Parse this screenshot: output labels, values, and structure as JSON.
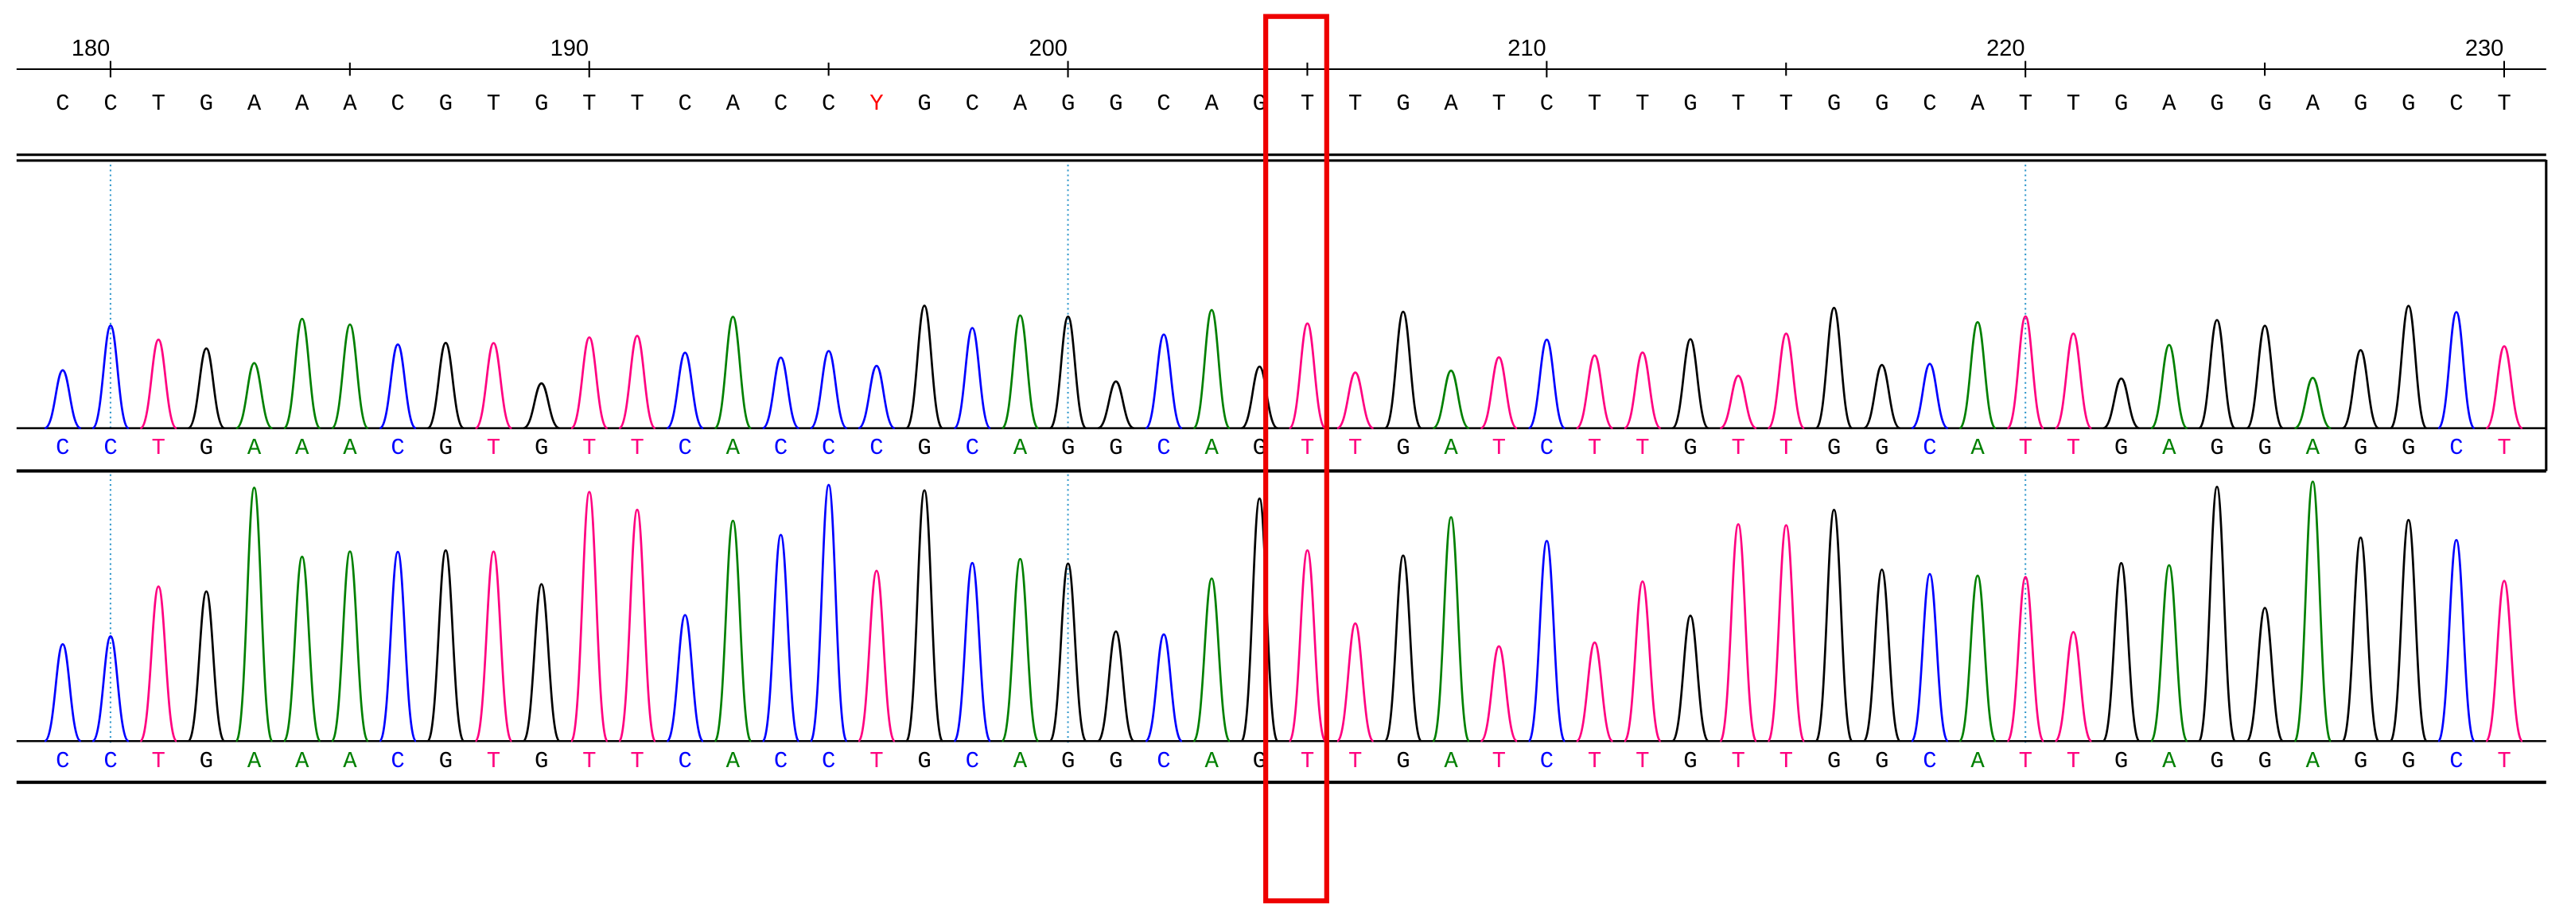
{
  "ruler": {
    "ticks": [
      180,
      190,
      200,
      210,
      220,
      230
    ]
  },
  "consensus": [
    "C",
    "C",
    "T",
    "G",
    "A",
    "A",
    "A",
    "C",
    "G",
    "T",
    "G",
    "T",
    "T",
    "C",
    "A",
    "C",
    "C",
    "Y",
    "G",
    "C",
    "A",
    "G",
    "G",
    "C",
    "A",
    "G",
    "T",
    "T",
    "G",
    "A",
    "T",
    "C",
    "T",
    "T",
    "G",
    "T",
    "T",
    "G",
    "G",
    "C",
    "A",
    "T",
    "T",
    "G",
    "A",
    "G",
    "G",
    "A",
    "G",
    "G",
    "C",
    "T"
  ],
  "trace_1": [
    "C",
    "C",
    "T",
    "G",
    "A",
    "A",
    "A",
    "C",
    "G",
    "T",
    "G",
    "T",
    "T",
    "C",
    "A",
    "C",
    "C",
    "C",
    "G",
    "C",
    "A",
    "G",
    "G",
    "C",
    "A",
    "G",
    "T",
    "T",
    "G",
    "A",
    "T",
    "C",
    "T",
    "T",
    "G",
    "T",
    "T",
    "G",
    "G",
    "C",
    "A",
    "T",
    "T",
    "G",
    "A",
    "G",
    "G",
    "A",
    "G",
    "G",
    "C",
    "T"
  ],
  "trace_2": [
    "C",
    "C",
    "T",
    "G",
    "A",
    "A",
    "A",
    "C",
    "G",
    "T",
    "G",
    "T",
    "T",
    "C",
    "A",
    "C",
    "C",
    "T",
    "G",
    "C",
    "A",
    "G",
    "G",
    "C",
    "A",
    "G",
    "T",
    "T",
    "G",
    "A",
    "T",
    "C",
    "T",
    "T",
    "G",
    "T",
    "T",
    "G",
    "G",
    "C",
    "A",
    "T",
    "T",
    "G",
    "A",
    "G",
    "G",
    "A",
    "G",
    "G",
    "C",
    "T"
  ]
}
